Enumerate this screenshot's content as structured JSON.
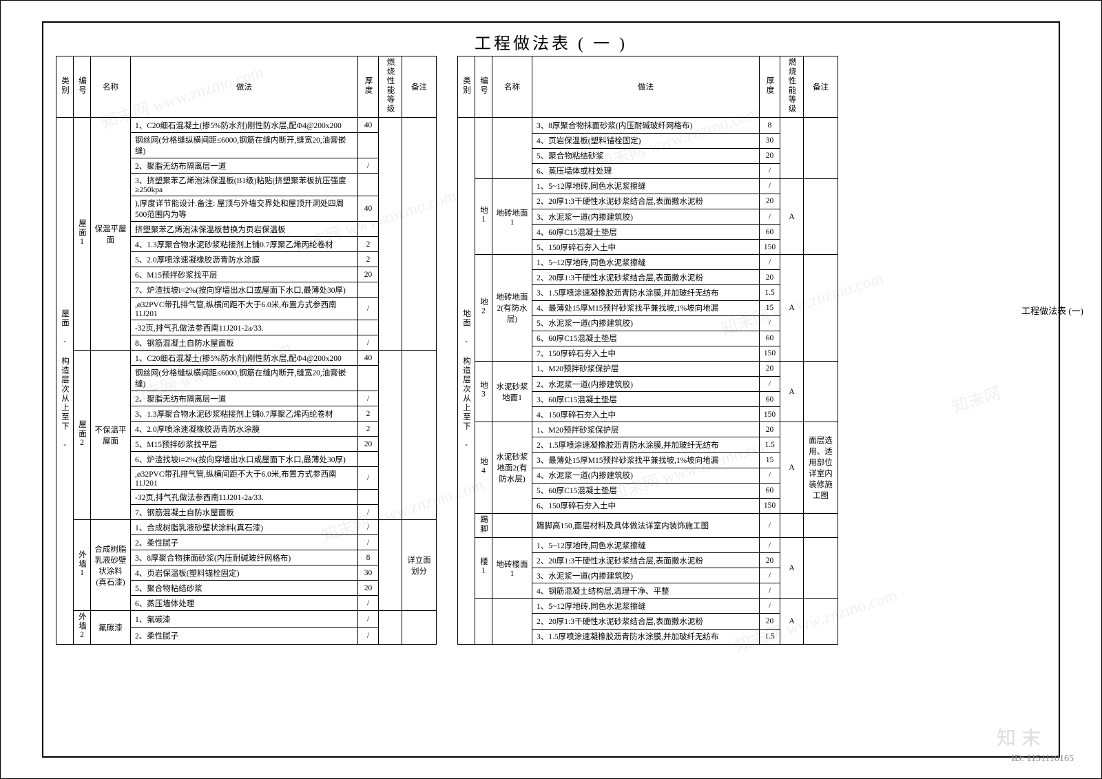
{
  "title": "工程做法表 ( 一 )",
  "side_note": "工程做法表 (一)",
  "bottom_id": "ID: 1151110165",
  "bottom_watermark": "知末",
  "headers": [
    "类别",
    "编号",
    "名称",
    "做法",
    "厚度",
    "燃烧性能等级",
    "备注"
  ],
  "left_category": "屋面 - 构造层次从上至下 -",
  "right_category": "地面 - 构造层次从上至下 -",
  "left_rows": [
    {
      "no": "屋面1",
      "name": "保温平屋面",
      "methods": [
        {
          "m": "1、C20细石混凝土(掺5%防水剂)刚性防水层,配Φ4@200x200",
          "t": "40"
        },
        {
          "m": "钢丝网(分格缝纵横间距≤6000,钢筋在缝内断开,缝宽20,油膏嵌缝)",
          "t": ""
        },
        {
          "m": "2、聚脂无纺布隔离层一道",
          "t": "/"
        },
        {
          "m": "3、挤塑聚苯乙烯泡沫保温板(B1级)粘贴(挤塑聚苯板抗压强度≥250kpa",
          "t": ""
        },
        {
          "m": "),厚度详节能设计.备注: 屋顶与外墙交界处和屋顶开洞处四周500范围内为等",
          "t": "40"
        },
        {
          "m": "挤塑聚苯乙烯泡沫保温板替换为页岩保温板",
          "t": ""
        },
        {
          "m": "4、1.3厚聚合物水泥砂浆粘接剂上铺0.7厚聚乙烯丙纶卷材",
          "t": "2"
        },
        {
          "m": "5、2.0厚喷涂速凝橡胶沥青防水涂膜",
          "t": "2"
        },
        {
          "m": "6、M15预拌砂浆找平层",
          "t": "20"
        },
        {
          "m": "7、炉渣找坡i=2%(按向穿墙出水口或屋面下水口,最薄处30厚)",
          "t": ""
        },
        {
          "m": ",ø32PVC带孔排气管,纵横间距不大于6.0米,布置方式参西南11J201",
          "t": "/"
        },
        {
          "m": "-32页,排气孔做法参西南11J201-2a/33.",
          "t": ""
        },
        {
          "m": "8、钢筋混凝土自防水屋面板",
          "t": "/"
        }
      ]
    },
    {
      "no": "屋面2",
      "name": "不保温平屋面",
      "methods": [
        {
          "m": "1、C20细石混凝土(掺5%防水剂)刚性防水层,配Φ4@200x200",
          "t": "40"
        },
        {
          "m": "钢丝网(分格缝纵横间距≤6000,钢筋在缝内断开,缝宽20,油膏嵌缝)",
          "t": ""
        },
        {
          "m": "2、聚脂无纺布隔离层一道",
          "t": "/"
        },
        {
          "m": "3、1.3厚聚合物水泥砂浆粘接剂上铺0.7厚聚乙烯丙纶卷材",
          "t": "2"
        },
        {
          "m": "4、2.0厚喷涂速凝橡胶沥青防水涂膜",
          "t": "2"
        },
        {
          "m": "5、M15预拌砂浆找平层",
          "t": "20"
        },
        {
          "m": "6、炉渣找坡i=2%(按向穿墙出水口或屋面下水口,最薄处30厚)",
          "t": ""
        },
        {
          "m": ",ø32PVC带孔排气管,纵横间距不大于6.0米,布置方式参西南11J201",
          "t": "/"
        },
        {
          "m": "-32页,排气孔做法参西南11J201-2a/33.",
          "t": ""
        },
        {
          "m": "7、钢筋混凝土自防水屋面板",
          "t": "/"
        }
      ]
    },
    {
      "no": "外墙1",
      "name": "合成树脂乳液砂壁状涂料(真石漆)",
      "notes": "详立面划分",
      "methods": [
        {
          "m": "1、合成树脂乳液砂壁状涂料(真石漆)",
          "t": "/"
        },
        {
          "m": "2、柔性腻子",
          "t": "/"
        },
        {
          "m": "3、8厚聚合物抹面砂浆(内压耐碱玻纤网格布)",
          "t": "8"
        },
        {
          "m": "4、页岩保温板(塑料锚栓固定)",
          "t": "30"
        },
        {
          "m": "5、聚合物粘结砂浆",
          "t": "20"
        },
        {
          "m": "6、蒸压墙体处理",
          "t": "/"
        }
      ]
    },
    {
      "no": "外墙2",
      "name": "氟碳漆",
      "methods": [
        {
          "m": "1、氟碳漆",
          "t": "/"
        },
        {
          "m": "2、柔性腻子",
          "t": "/"
        }
      ]
    }
  ],
  "right_rows": [
    {
      "no": "",
      "name": "",
      "methods": [
        {
          "m": "3、8厚聚合物抹面砂浆(内压耐碱玻纤网格布)",
          "t": "8"
        },
        {
          "m": "4、页岩保温板(塑料锚栓固定)",
          "t": "30"
        },
        {
          "m": "5、聚合物粘结砂浆",
          "t": "20"
        },
        {
          "m": "6、蒸压墙体或柱处理",
          "t": "/"
        }
      ]
    },
    {
      "no": "地1",
      "name": "地砖地面1",
      "grade": "A",
      "methods": [
        {
          "m": "1、5~12厚地砖,同色水泥浆擦缝",
          "t": "/"
        },
        {
          "m": "2、20厚1:3干硬性水泥砂浆结合层,表面撒水泥粉",
          "t": "20"
        },
        {
          "m": "3、水泥浆一道(内掺建筑胶)",
          "t": "/"
        },
        {
          "m": "4、60厚C15混凝土垫层",
          "t": "60"
        },
        {
          "m": "5、150厚碎石夯入土中",
          "t": "150"
        }
      ]
    },
    {
      "no": "地2",
      "name": "地砖地面2(有防水层)",
      "grade": "A",
      "methods": [
        {
          "m": "1、5~12厚地砖,同色水泥浆擦缝",
          "t": "/"
        },
        {
          "m": "2、20厚1:3干硬性水泥砂浆结合层,表面撒水泥粉",
          "t": "20"
        },
        {
          "m": "3、1.5厚喷涂速凝橡胶沥青防水涂膜,并加玻纤无纺布",
          "t": "1.5"
        },
        {
          "m": "4、最薄处15厚M15预拌砂浆找平兼找坡,1%坡向地漏",
          "t": "15"
        },
        {
          "m": "5、水泥浆一道(内掺建筑胶)",
          "t": "/"
        },
        {
          "m": "6、60厚C15混凝土垫层",
          "t": "60"
        },
        {
          "m": "7、150厚碎石夯入土中",
          "t": "150"
        }
      ]
    },
    {
      "no": "地3",
      "name": "水泥砂浆地面1",
      "grade": "A",
      "methods": [
        {
          "m": "1、M20预拌砂浆保护层",
          "t": "20"
        },
        {
          "m": "2、水泥浆一道(内掺建筑胶)",
          "t": "/"
        },
        {
          "m": "3、60厚C15混凝土垫层",
          "t": "60"
        },
        {
          "m": "4、150厚碎石夯入土中",
          "t": "150"
        }
      ]
    },
    {
      "no": "地4",
      "name": "水泥砂浆地面2(有防水层)",
      "grade": "A",
      "notes": "面层选用、适用部位详室内装修施工图",
      "methods": [
        {
          "m": "1、M20预拌砂浆保护层",
          "t": "20"
        },
        {
          "m": "2、1.5厚喷涂速凝橡胶沥青防水涂膜,并加玻纤无纺布",
          "t": "1.5"
        },
        {
          "m": "3、最薄处15厚M15预拌砂浆找平兼找坡,1%坡向地漏",
          "t": "15"
        },
        {
          "m": "4、水泥浆一道(内掺建筑胶)",
          "t": "/"
        },
        {
          "m": "5、60厚C15混凝土垫层",
          "t": "60"
        },
        {
          "m": "6、150厚碎石夯入土中",
          "t": "150"
        }
      ]
    },
    {
      "no": "踢脚",
      "name": "",
      "methods": [
        {
          "m": "踢脚高150,面层材料及具体做法详室内装饰施工图",
          "t": "/"
        }
      ]
    },
    {
      "no": "楼1",
      "name": "地砖楼面1",
      "grade": "A",
      "methods": [
        {
          "m": "1、5~12厚地砖,同色水泥浆擦缝",
          "t": "/"
        },
        {
          "m": "2、20厚1:3干硬性水泥砂浆结合层,表面撒水泥粉",
          "t": "20"
        },
        {
          "m": "3、水泥浆一道(内掺建筑胶)",
          "t": "/"
        },
        {
          "m": "4、钢筋混凝土结构层,清理干净、平整",
          "t": "/"
        }
      ]
    },
    {
      "no": "",
      "name": "",
      "grade": "A",
      "methods": [
        {
          "m": "1、5~12厚地砖,同色水泥浆擦缝",
          "t": "/"
        },
        {
          "m": "2、20厚1:3干硬性水泥砂浆结合层,表面撒水泥粉",
          "t": "20"
        },
        {
          "m": "3、1.5厚喷涂速凝橡胶沥青防水涂膜,并加玻纤无纺布",
          "t": "1.5"
        }
      ]
    }
  ]
}
